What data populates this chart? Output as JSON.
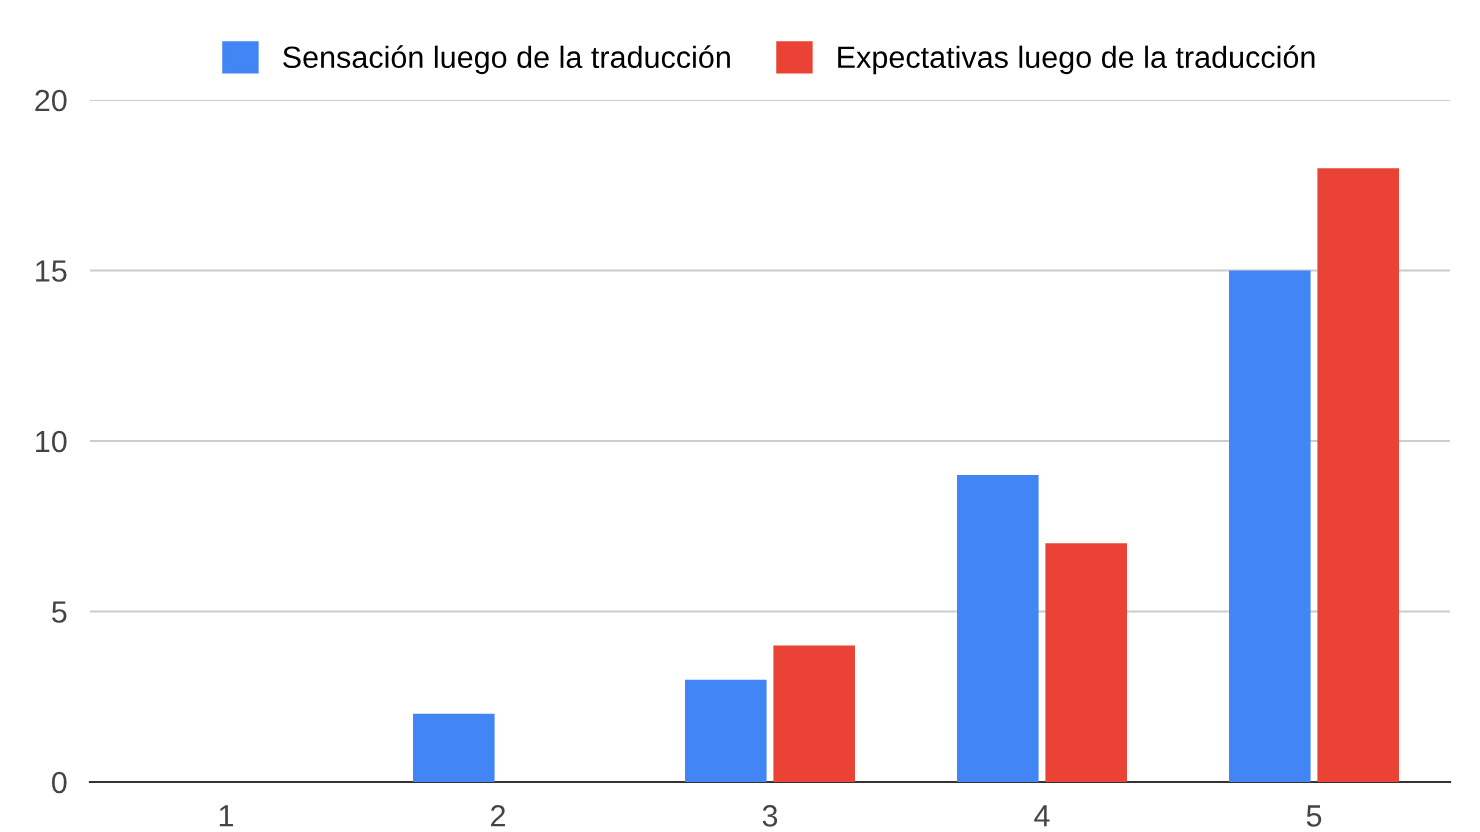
{
  "chart_data": {
    "type": "bar",
    "categories": [
      "1",
      "2",
      "3",
      "4",
      "5"
    ],
    "series": [
      {
        "name": "Sensación luego de la traducción",
        "color": "#4285f4",
        "values": [
          0,
          2,
          3,
          9,
          15
        ]
      },
      {
        "name": "Expectativas luego de la traducción",
        "color": "#ea4335",
        "values": [
          0,
          0,
          4,
          7,
          18
        ]
      }
    ],
    "ylim": [
      0,
      20
    ],
    "yticks": [
      0,
      5,
      10,
      15,
      20
    ],
    "grid": "y",
    "legend": "top"
  }
}
